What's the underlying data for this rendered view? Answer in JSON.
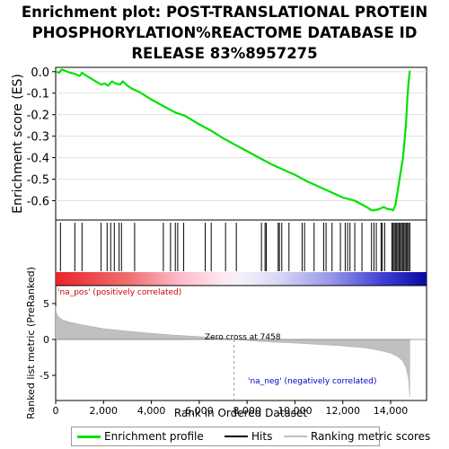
{
  "title_lines": [
    "Enrichment plot: POST-TRANSLATIONAL PROTEIN",
    "PHOSPHORYLATION%REACTOME DATABASE ID",
    "RELEASE 83%8957275"
  ],
  "colors": {
    "enrichment_line": "#00e000",
    "hits": "#000000",
    "ranked_fill": "#c0c0c0",
    "pos_label": "#cc0000",
    "neg_label": "#0000cc",
    "zero_line": "#999999"
  },
  "chart_data": [
    {
      "type": "line",
      "name": "enrichment-profile",
      "ylabel": "Enrichment score (ES)",
      "xlim": [
        0,
        15500
      ],
      "ylim": [
        -0.69,
        0.02
      ],
      "yticks": [
        0.0,
        -0.1,
        -0.2,
        -0.3,
        -0.4,
        -0.5,
        -0.6
      ],
      "ytick_labels": [
        "0.0",
        "-0.1",
        "-0.2",
        "-0.3",
        "-0.4",
        "-0.5",
        "-0.6"
      ],
      "x": [
        0,
        150,
        250,
        600,
        800,
        1000,
        1100,
        1300,
        1600,
        1900,
        2050,
        2200,
        2350,
        2500,
        2700,
        2800,
        3000,
        3200,
        3500,
        4000,
        4500,
        5000,
        5400,
        6000,
        6500,
        7000,
        7500,
        8000,
        8500,
        9000,
        9500,
        10000,
        10500,
        11000,
        11500,
        12000,
        12500,
        13000,
        13200,
        13300,
        13500,
        13600,
        13700,
        13900,
        14000,
        14100,
        14200,
        14300,
        14400,
        14500,
        14550,
        14600,
        14650,
        14700,
        14750,
        14800
      ],
      "values": [
        0.0,
        -0.005,
        0.01,
        -0.005,
        -0.01,
        -0.02,
        -0.005,
        -0.02,
        -0.04,
        -0.06,
        -0.055,
        -0.065,
        -0.045,
        -0.055,
        -0.06,
        -0.045,
        -0.065,
        -0.08,
        -0.095,
        -0.13,
        -0.16,
        -0.19,
        -0.205,
        -0.245,
        -0.275,
        -0.31,
        -0.34,
        -0.37,
        -0.4,
        -0.43,
        -0.455,
        -0.48,
        -0.51,
        -0.535,
        -0.56,
        -0.585,
        -0.6,
        -0.63,
        -0.645,
        -0.645,
        -0.64,
        -0.635,
        -0.63,
        -0.64,
        -0.64,
        -0.645,
        -0.62,
        -0.55,
        -0.48,
        -0.41,
        -0.36,
        -0.3,
        -0.22,
        -0.12,
        -0.05,
        0.005
      ]
    },
    {
      "type": "scatter",
      "name": "hits",
      "xlim": [
        0,
        15500
      ],
      "x": [
        200,
        800,
        1100,
        1900,
        2150,
        2300,
        2450,
        2650,
        2750,
        3300,
        4500,
        4800,
        5000,
        5100,
        5350,
        6250,
        6500,
        7100,
        7550,
        8600,
        8750,
        8800,
        9300,
        9350,
        9450,
        9750,
        10300,
        10400,
        10800,
        11200,
        11300,
        11550,
        11900,
        12100,
        12200,
        12300,
        12500,
        12800,
        13200,
        13300,
        13400,
        13600,
        13650,
        13750,
        14050,
        14100,
        14150,
        14200,
        14250,
        14300,
        14350,
        14400,
        14450,
        14500,
        14550,
        14600,
        14650,
        14700,
        14750,
        14800
      ]
    },
    {
      "type": "area",
      "name": "ranked-list-metric",
      "ylabel": "Ranked list metric (PreRanked)",
      "xlabel": "Rank in Ordered Dataset",
      "xlim": [
        0,
        15500
      ],
      "ylim": [
        -8.5,
        7.5
      ],
      "yticks": [
        5,
        0,
        -5
      ],
      "ytick_labels": [
        "5",
        "0",
        "-5"
      ],
      "xticks": [
        0,
        2000,
        4000,
        6000,
        8000,
        10000,
        12000,
        14000
      ],
      "xtick_labels": [
        "0",
        "2,000",
        "4,000",
        "6,000",
        "8,000",
        "10,000",
        "12,000",
        "14,000"
      ],
      "x": [
        0,
        20,
        100,
        300,
        600,
        1000,
        1500,
        2000,
        3000,
        4000,
        5000,
        6000,
        7000,
        7458,
        8000,
        9000,
        10000,
        11000,
        12000,
        13000,
        13500,
        14000,
        14300,
        14500,
        14650,
        14750,
        14800
      ],
      "values": [
        4.6,
        3.8,
        3.2,
        2.7,
        2.4,
        2.1,
        1.8,
        1.5,
        1.15,
        0.85,
        0.6,
        0.4,
        0.15,
        0.0,
        -0.15,
        -0.35,
        -0.5,
        -0.7,
        -0.9,
        -1.2,
        -1.5,
        -1.9,
        -2.4,
        -3.0,
        -4.0,
        -5.5,
        -8.0
      ],
      "zero_cross_label": "Zero cross at 7458",
      "zero_cross": 7458,
      "pos_label": "'na_pos' (positively correlated)",
      "neg_label": "'na_neg' (negatively correlated)"
    }
  ],
  "legend": {
    "enrichment": "Enrichment profile",
    "hits": "Hits",
    "ranking": "Ranking metric scores"
  }
}
